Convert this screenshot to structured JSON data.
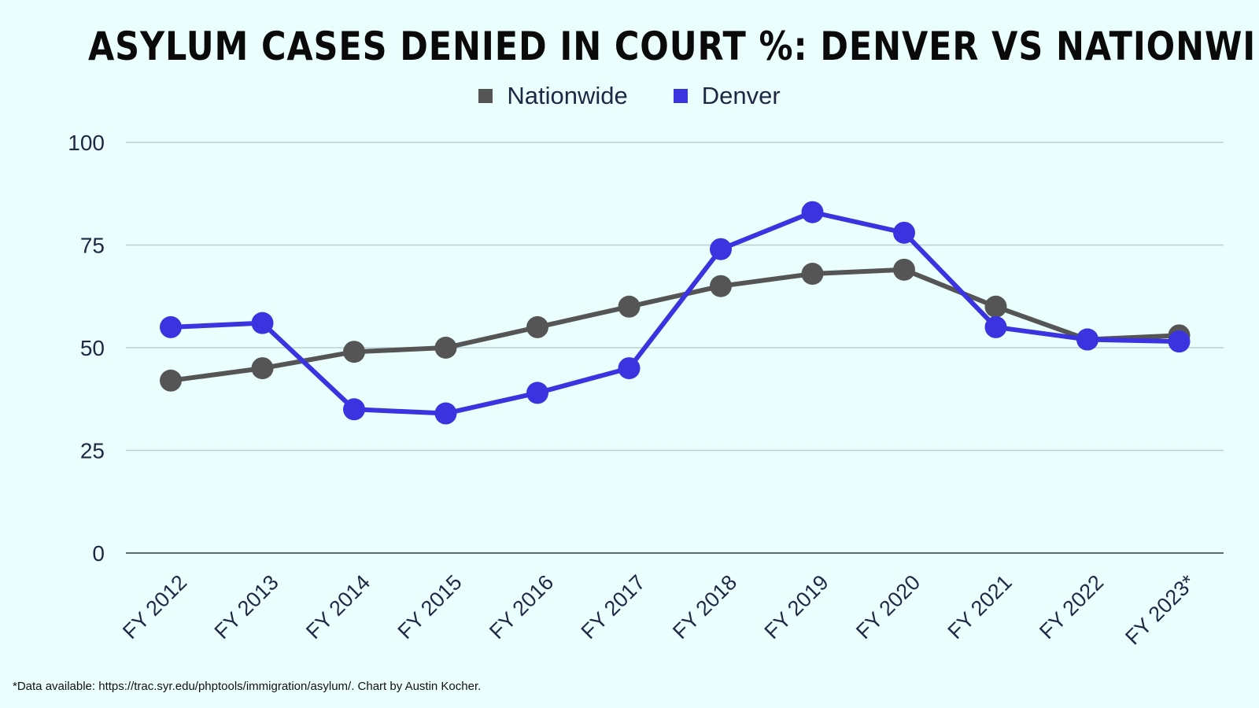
{
  "title": "ASYLUM CASES DENIED IN COURT %: DENVER VS NATIONWIDE",
  "footnote": "*Data available: https://trac.syr.edu/phptools/immigration/asylum/. Chart by Austin Kocher.",
  "colors": {
    "background": "#eafffd",
    "grid": "#b9cfd0",
    "axis": "#5e6a72"
  },
  "chart_data": {
    "type": "line",
    "title": "ASYLUM CASES DENIED IN COURT %: DENVER VS NATIONWIDE",
    "xlabel": "",
    "ylabel": "",
    "ylim": [
      0,
      100
    ],
    "yticks": [
      0,
      25,
      50,
      75,
      100
    ],
    "grid": true,
    "legend_position": "top-center",
    "categories": [
      "FY 2012",
      "FY 2013",
      "FY 2014",
      "FY 2015",
      "FY 2016",
      "FY 2017",
      "FY 2018",
      "FY 2019",
      "FY 2020",
      "FY 2021",
      "FY 2022",
      "FY 2023*"
    ],
    "series": [
      {
        "name": "Nationwide",
        "color": "#555555",
        "values": [
          42,
          45,
          49,
          50,
          55,
          60,
          65,
          68,
          69,
          60,
          52,
          53
        ]
      },
      {
        "name": "Denver",
        "color": "#3b33e0",
        "values": [
          55,
          56,
          35,
          34,
          39,
          45,
          74,
          83,
          78,
          55,
          52,
          51.5
        ]
      }
    ]
  }
}
